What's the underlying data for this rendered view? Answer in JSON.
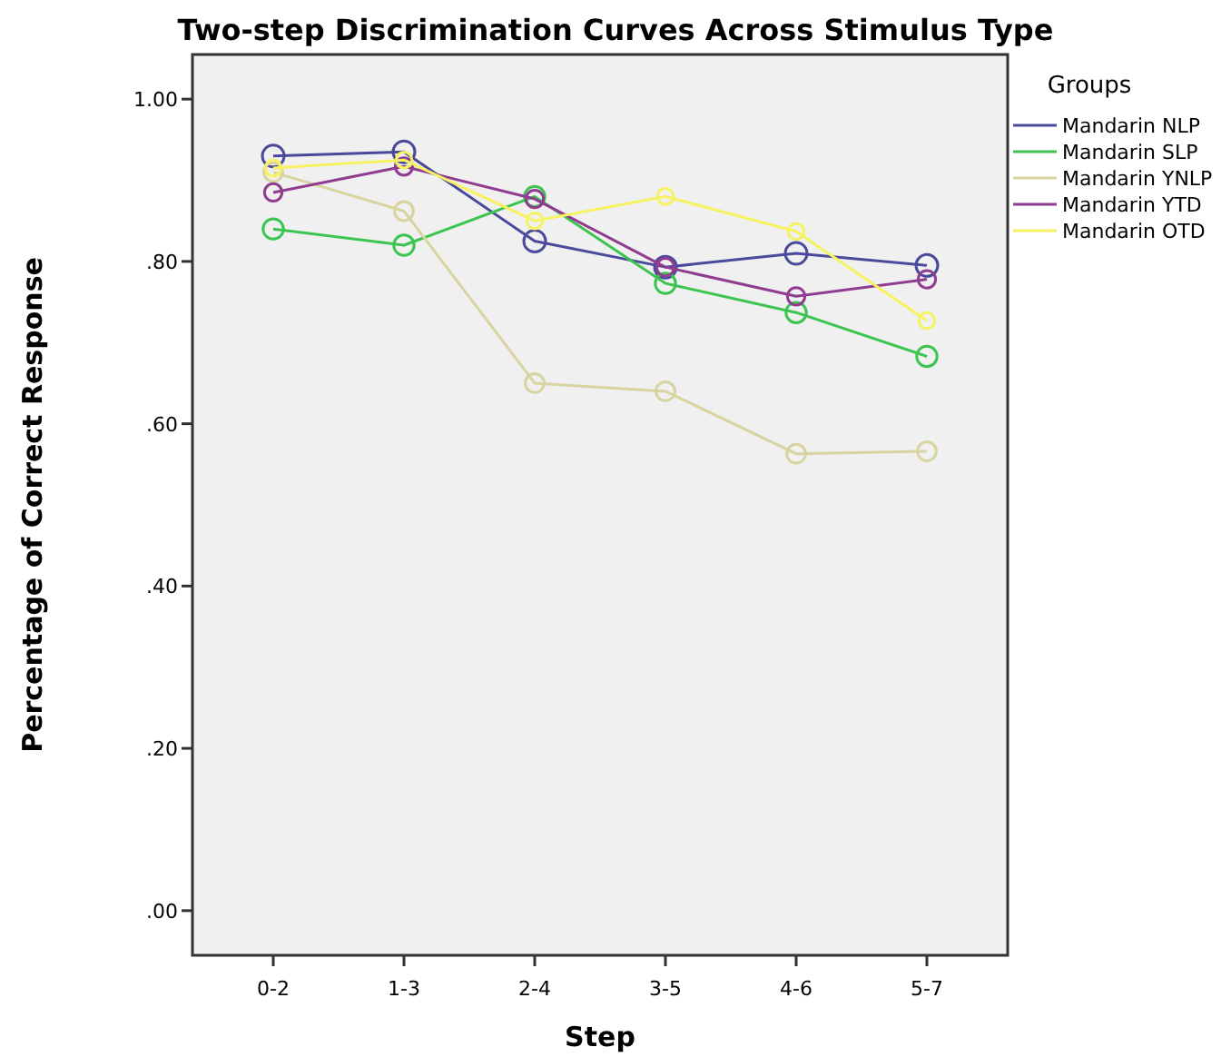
{
  "chart_data": {
    "type": "line",
    "title": "Two-step Discrimination Curves Across Stimulus Type",
    "xlabel": "Step",
    "ylabel": "Percentage of Correct Response",
    "legend_title": "Groups",
    "legend": "right",
    "marker": "circle",
    "grid": false,
    "categories": [
      "0-2",
      "1-3",
      "2-4",
      "3-5",
      "4-6",
      "5-7"
    ],
    "ylim": [
      -0.055,
      1.055
    ],
    "yticks": [
      {
        "value": 0,
        "label": ".00"
      },
      {
        "value": 0.2,
        "label": ".20"
      },
      {
        "value": 0.4,
        "label": ".40"
      },
      {
        "value": 0.6,
        "label": ".60"
      },
      {
        "value": 0.8,
        "label": ".80"
      },
      {
        "value": 1,
        "label": "1.00"
      }
    ],
    "series": [
      {
        "name": "Mandarin NLP",
        "color": "#4a4a9c",
        "values": [
          0.93,
          0.935,
          0.825,
          0.793,
          0.81,
          0.795
        ]
      },
      {
        "name": "Mandarin SLP",
        "color": "#3cc450",
        "values": [
          0.84,
          0.82,
          0.88,
          0.773,
          0.737,
          0.683
        ]
      },
      {
        "name": "Mandarin YNLP",
        "color": "#d8d4a0",
        "values": [
          0.91,
          0.862,
          0.65,
          0.64,
          0.563,
          0.566
        ]
      },
      {
        "name": "Mandarin YTD",
        "color": "#903c90",
        "values": [
          0.885,
          0.917,
          0.877,
          0.793,
          0.757,
          0.778
        ]
      },
      {
        "name": "Mandarin OTD",
        "color": "#f6f260",
        "values": [
          0.915,
          0.925,
          0.85,
          0.88,
          0.837,
          0.727
        ]
      }
    ]
  }
}
